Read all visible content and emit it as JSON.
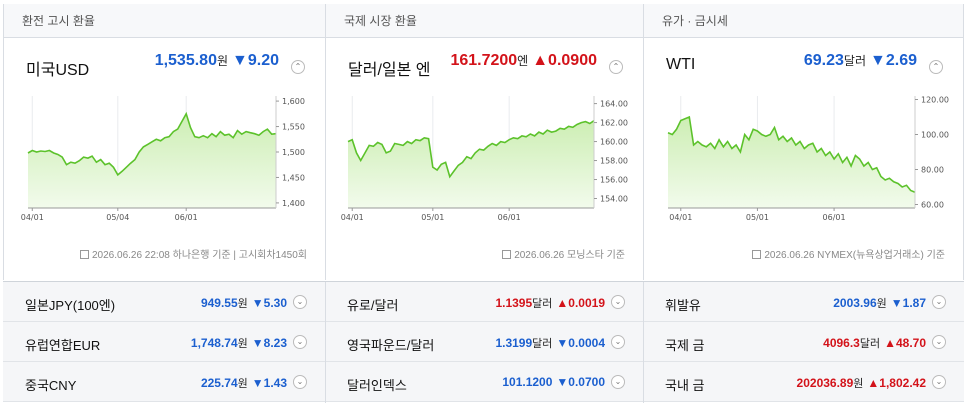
{
  "panels": [
    {
      "header": "환전 고시 환율",
      "name": "미국USD",
      "value": "1,535.80",
      "unit": "원",
      "change": "▼9.20",
      "direction": "down",
      "toggle": "⌃",
      "source": "2026.06.26 22:08 하나은행 기준 | 고시회차1450회",
      "chart_data": {
        "type": "area",
        "yticks": [
          "1,600",
          "1,550",
          "1,500",
          "1,450",
          "1,400"
        ],
        "ylim": [
          1390,
          1610
        ],
        "xticks": [
          "04/01",
          "05/04",
          "06/01"
        ],
        "x_tick_index": [
          1,
          21,
          37
        ],
        "values": [
          1498,
          1503,
          1500,
          1502,
          1501,
          1503,
          1498,
          1495,
          1490,
          1475,
          1480,
          1478,
          1483,
          1490,
          1488,
          1492,
          1480,
          1485,
          1475,
          1478,
          1470,
          1455,
          1462,
          1470,
          1478,
          1485,
          1500,
          1510,
          1515,
          1520,
          1525,
          1522,
          1528,
          1530,
          1540,
          1545,
          1560,
          1575,
          1548,
          1530,
          1528,
          1532,
          1528,
          1536,
          1530,
          1540,
          1533,
          1535,
          1528,
          1542,
          1535,
          1540,
          1538,
          1536,
          1533,
          1540,
          1545,
          1535,
          1536
        ]
      }
    },
    {
      "header": "국제 시장 환율",
      "name": "달러/일본 엔",
      "value": "161.7200",
      "unit": "엔",
      "change": "▲0.0900",
      "direction": "up",
      "toggle": "⌃",
      "source": "2026.06.26 모닝스타 기준",
      "chart_data": {
        "type": "area",
        "yticks": [
          "164.00",
          "162.00",
          "160.00",
          "158.00",
          "156.00",
          "154.00"
        ],
        "ylim": [
          153,
          164.8
        ],
        "xticks": [
          "04/01",
          "05/01",
          "06/01"
        ],
        "x_tick_index": [
          1,
          20,
          38
        ],
        "values": [
          160.0,
          160.2,
          158.8,
          158.0,
          158.8,
          159.6,
          159.5,
          159.9,
          159.7,
          158.8,
          159.0,
          159.8,
          159.7,
          159.6,
          160.0,
          159.8,
          160.2,
          160.1,
          160.4,
          160.3,
          157.3,
          157.0,
          157.6,
          157.8,
          156.3,
          156.9,
          157.5,
          157.8,
          158.4,
          158.2,
          158.8,
          159.2,
          159.1,
          159.5,
          159.8,
          159.6,
          160.0,
          159.9,
          160.2,
          160.4,
          160.3,
          160.6,
          160.5,
          160.8,
          160.6,
          161.0,
          160.8,
          161.2,
          161.0,
          161.1,
          161.4,
          161.3,
          161.6,
          161.5,
          161.8,
          162.0,
          162.1,
          161.9,
          162.2
        ]
      }
    },
    {
      "header": "유가 · 금시세",
      "name": "WTI",
      "value": "69.23",
      "unit": "달러",
      "change": "▼2.69",
      "direction": "down",
      "toggle": "⌃",
      "source": "2026.06.26 NYMEX(뉴욕상업거래소) 기준",
      "chart_data": {
        "type": "area",
        "yticks": [
          "120.00",
          "100.00",
          "80.00",
          "60.00"
        ],
        "ylim": [
          58,
          122
        ],
        "xticks": [
          "04/01",
          "05/01",
          "06/01"
        ],
        "x_tick_index": [
          3,
          21,
          39
        ],
        "values": [
          101,
          100,
          103,
          108,
          109,
          110,
          94,
          96,
          94,
          93,
          95,
          92,
          97,
          93,
          96,
          92,
          94,
          90,
          100,
          97,
          103,
          102,
          100,
          99,
          100,
          104,
          97,
          99,
          96,
          98,
          94,
          96,
          92,
          94,
          95,
          90,
          92,
          88,
          90,
          86,
          89,
          84,
          87,
          82,
          88,
          86,
          82,
          84,
          80,
          81,
          76,
          74,
          75,
          73,
          72,
          70,
          71,
          68,
          67
        ]
      }
    }
  ],
  "rows": [
    [
      {
        "label": "일본JPY(100엔)",
        "value": "949.55",
        "unit": "원",
        "change": "▼5.30",
        "direction": "down",
        "toggle": "⌄"
      },
      {
        "label": "유로/달러",
        "value": "1.1395",
        "unit": "달러",
        "change": "▲0.0019",
        "direction": "up",
        "toggle": "⌄"
      },
      {
        "label": "휘발유",
        "value": "2003.96",
        "unit": "원",
        "change": "▼1.87",
        "direction": "down",
        "toggle": "⌄"
      }
    ],
    [
      {
        "label": "유럽연합EUR",
        "value": "1,748.74",
        "unit": "원",
        "change": "▼8.23",
        "direction": "down",
        "toggle": "⌄"
      },
      {
        "label": "영국파운드/달러",
        "value": "1.3199",
        "unit": "달러",
        "change": "▼0.0004",
        "direction": "down",
        "toggle": "⌄"
      },
      {
        "label": "국제 금",
        "value": "4096.3",
        "unit": "달러",
        "change": "▲48.70",
        "direction": "up",
        "toggle": "⌄"
      }
    ],
    [
      {
        "label": "중국CNY",
        "value": "225.74",
        "unit": "원",
        "change": "▼1.43",
        "direction": "down",
        "toggle": "⌄"
      },
      {
        "label": "달러인덱스",
        "value": "101.1200",
        "unit": "",
        "change": "▼0.0700",
        "direction": "down",
        "toggle": "⌄"
      },
      {
        "label": "국내 금",
        "value": "202036.89",
        "unit": "원",
        "change": "▲1,802.42",
        "direction": "up",
        "toggle": "⌄"
      }
    ]
  ],
  "colors": {
    "down": "#1b5fcf",
    "up": "#d3131a",
    "line": "#5cc22b",
    "fill_top": "#cdeeb4",
    "fill_bottom": "#f2fbec"
  }
}
